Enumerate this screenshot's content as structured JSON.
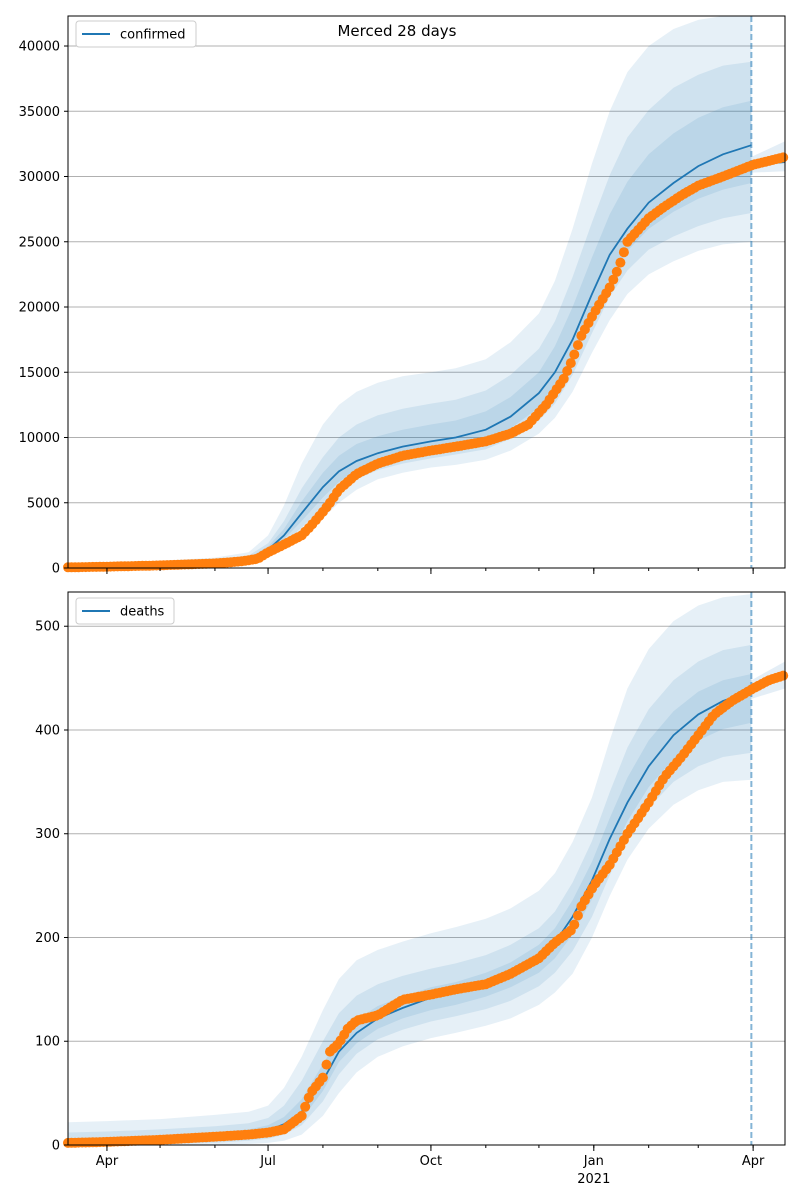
{
  "figure_title": "Merced 28 days",
  "colors": {
    "model_line": "#1f77b4",
    "observed": "#ff7f0e",
    "band": "#1f77b4",
    "grid": "#b0b0b0",
    "forecast_line": "#1f77b4"
  },
  "x_axis": {
    "start": "2020-03-10",
    "end": "2021-04-19",
    "ticks": [
      {
        "label": "Apr",
        "date": "2020-04-01"
      },
      {
        "label": "Jul",
        "date": "2020-07-01"
      },
      {
        "label": "Oct",
        "date": "2020-10-01"
      },
      {
        "label": "Jan",
        "date": "2021-01-01"
      },
      {
        "label": "Apr",
        "date": "2021-04-01"
      }
    ],
    "year_label": "2021",
    "year_label_date": "2021-01-01",
    "forecast_date": "2021-03-31"
  },
  "chart_data": [
    {
      "type": "line",
      "legend": "confirmed",
      "legend_placement": "upper-left",
      "grid_y": true,
      "ylim": [
        0,
        42300
      ],
      "yticks": [
        0,
        5000,
        10000,
        15000,
        20000,
        25000,
        30000,
        35000,
        40000
      ],
      "model": {
        "dates": [
          "2020-03-10",
          "2020-04-01",
          "2020-05-01",
          "2020-06-01",
          "2020-06-20",
          "2020-07-01",
          "2020-07-10",
          "2020-07-20",
          "2020-08-01",
          "2020-08-10",
          "2020-08-20",
          "2020-09-01",
          "2020-09-15",
          "2020-10-01",
          "2020-10-15",
          "2020-11-01",
          "2020-11-15",
          "2020-12-01",
          "2020-12-10",
          "2020-12-20",
          "2020-12-31",
          "2021-01-10",
          "2021-01-20",
          "2021-02-01",
          "2021-02-15",
          "2021-03-01",
          "2021-03-15",
          "2021-03-31"
        ],
        "values": [
          150,
          200,
          280,
          450,
          700,
          1400,
          2500,
          4200,
          6200,
          7400,
          8200,
          8800,
          9300,
          9700,
          10000,
          10600,
          11600,
          13400,
          15000,
          17500,
          21000,
          24000,
          26000,
          28000,
          29500,
          30800,
          31700,
          32400
        ]
      },
      "bands": [
        {
          "dates": [
            "2020-03-10",
            "2020-04-01",
            "2020-05-01",
            "2020-06-01",
            "2020-06-20",
            "2020-07-01",
            "2020-07-10",
            "2020-07-20",
            "2020-08-01",
            "2020-08-10",
            "2020-08-20",
            "2020-09-01",
            "2020-09-15",
            "2020-10-01",
            "2020-10-15",
            "2020-11-01",
            "2020-11-15",
            "2020-12-01",
            "2020-12-10",
            "2020-12-20",
            "2020-12-31",
            "2021-01-10",
            "2021-01-20",
            "2021-02-01",
            "2021-02-15",
            "2021-03-01",
            "2021-03-15",
            "2021-03-31"
          ],
          "lower": [
            100,
            150,
            200,
            330,
            500,
            900,
            1600,
            2600,
            3800,
            5000,
            6000,
            6800,
            7300,
            7700,
            7900,
            8300,
            9000,
            10300,
            11500,
            13500,
            16500,
            19000,
            21000,
            22500,
            23500,
            24300,
            24800,
            25000
          ],
          "upper": [
            300,
            400,
            550,
            800,
            1200,
            2500,
            4800,
            8000,
            11000,
            12500,
            13500,
            14200,
            14700,
            15000,
            15300,
            16000,
            17300,
            19500,
            22000,
            26000,
            31000,
            35000,
            38000,
            40000,
            41300,
            42000,
            42300,
            42300
          ]
        },
        {
          "dates": [
            "2020-03-10",
            "2020-04-01",
            "2020-05-01",
            "2020-06-01",
            "2020-06-20",
            "2020-07-01",
            "2020-07-10",
            "2020-07-20",
            "2020-08-01",
            "2020-08-10",
            "2020-08-20",
            "2020-09-01",
            "2020-09-15",
            "2020-10-01",
            "2020-10-15",
            "2020-11-01",
            "2020-11-15",
            "2020-12-01",
            "2020-12-10",
            "2020-12-20",
            "2020-12-31",
            "2021-01-10",
            "2021-01-20",
            "2021-02-01",
            "2021-02-15",
            "2021-03-01",
            "2021-03-15",
            "2021-03-31"
          ],
          "lower": [
            120,
            170,
            230,
            380,
            580,
            1050,
            1900,
            3100,
            4700,
            5800,
            6800,
            7500,
            8000,
            8400,
            8700,
            9100,
            9900,
            11300,
            12600,
            14800,
            18000,
            20800,
            22800,
            24400,
            25400,
            26200,
            26800,
            27200
          ],
          "upper": [
            220,
            300,
            400,
            620,
            950,
            1900,
            3600,
            6100,
            8500,
            10000,
            11000,
            11700,
            12200,
            12600,
            12900,
            13600,
            14800,
            16800,
            18900,
            22300,
            26500,
            30100,
            33000,
            35100,
            36800,
            37800,
            38500,
            38800
          ]
        },
        {
          "dates": [
            "2020-03-10",
            "2020-04-01",
            "2020-05-01",
            "2020-06-01",
            "2020-06-20",
            "2020-07-01",
            "2020-07-10",
            "2020-07-20",
            "2020-08-01",
            "2020-08-10",
            "2020-08-20",
            "2020-09-01",
            "2020-09-15",
            "2020-10-01",
            "2020-10-15",
            "2020-11-01",
            "2020-11-15",
            "2020-12-01",
            "2020-12-10",
            "2020-12-20",
            "2020-12-31",
            "2021-01-10",
            "2021-01-20",
            "2021-02-01",
            "2021-02-15",
            "2021-03-01",
            "2021-03-15",
            "2021-03-31"
          ],
          "lower": [
            135,
            185,
            255,
            410,
            630,
            1200,
            2200,
            3600,
            5400,
            6600,
            7500,
            8100,
            8600,
            9000,
            9300,
            9800,
            10700,
            12300,
            13700,
            16000,
            19400,
            22300,
            24300,
            26000,
            27300,
            28300,
            29000,
            29500
          ],
          "upper": [
            180,
            240,
            330,
            520,
            800,
            1650,
            3000,
            5100,
            7300,
            8600,
            9500,
            10100,
            10600,
            11000,
            11300,
            12000,
            13100,
            15000,
            17000,
            20000,
            23800,
            27100,
            29600,
            31700,
            33300,
            34500,
            35300,
            35800
          ]
        }
      ],
      "tail": {
        "dates": [
          "2021-03-31",
          "2021-04-19"
        ],
        "center": [
          30900,
          31100
        ],
        "lower": [
          30300,
          30400
        ],
        "upper": [
          31500,
          32700
        ]
      },
      "observed": {
        "dates": [
          "2020-03-10",
          "2020-04-01",
          "2020-05-01",
          "2020-06-01",
          "2020-06-15",
          "2020-06-25",
          "2020-07-01",
          "2020-07-10",
          "2020-07-20",
          "2020-07-25",
          "2020-08-01",
          "2020-08-05",
          "2020-08-10",
          "2020-08-20",
          "2020-09-01",
          "2020-09-15",
          "2020-10-01",
          "2020-10-15",
          "2020-11-01",
          "2020-11-15",
          "2020-11-25",
          "2020-12-05",
          "2020-12-15",
          "2020-12-20",
          "2020-12-25",
          "2021-01-01",
          "2021-01-10",
          "2021-01-15",
          "2021-01-20",
          "2021-02-01",
          "2021-02-10",
          "2021-02-20",
          "2021-03-01",
          "2021-03-15",
          "2021-04-01",
          "2021-04-10",
          "2021-04-19"
        ],
        "values": [
          50,
          100,
          200,
          350,
          500,
          700,
          1200,
          1800,
          2500,
          3200,
          4300,
          5000,
          6000,
          7200,
          8000,
          8600,
          9000,
          9300,
          9700,
          10300,
          11000,
          12500,
          14500,
          16000,
          17800,
          19500,
          21500,
          23000,
          25000,
          26800,
          27700,
          28600,
          29300,
          30000,
          30900,
          31200,
          31500
        ]
      }
    },
    {
      "type": "line",
      "legend": "deaths",
      "legend_placement": "upper-left",
      "grid_y": true,
      "ylim": [
        0,
        533
      ],
      "yticks": [
        0,
        100,
        200,
        300,
        400,
        500
      ],
      "model": {
        "dates": [
          "2020-03-10",
          "2020-04-01",
          "2020-05-01",
          "2020-06-01",
          "2020-06-20",
          "2020-07-01",
          "2020-07-10",
          "2020-07-20",
          "2020-08-01",
          "2020-08-10",
          "2020-08-20",
          "2020-09-01",
          "2020-09-15",
          "2020-10-01",
          "2020-10-15",
          "2020-11-01",
          "2020-11-15",
          "2020-12-01",
          "2020-12-10",
          "2020-12-20",
          "2020-12-31",
          "2021-01-10",
          "2021-01-20",
          "2021-02-01",
          "2021-02-15",
          "2021-03-01",
          "2021-03-15",
          "2021-03-31"
        ],
        "values": [
          2,
          3,
          5,
          8,
          11,
          14,
          20,
          32,
          62,
          90,
          108,
          122,
          132,
          142,
          147,
          155,
          165,
          180,
          195,
          220,
          255,
          295,
          330,
          365,
          395,
          415,
          428,
          437
        ]
      },
      "bands": [
        {
          "dates": [
            "2020-03-10",
            "2020-04-01",
            "2020-05-01",
            "2020-06-01",
            "2020-06-20",
            "2020-07-01",
            "2020-07-10",
            "2020-07-20",
            "2020-08-01",
            "2020-08-10",
            "2020-08-20",
            "2020-09-01",
            "2020-09-15",
            "2020-10-01",
            "2020-10-15",
            "2020-11-01",
            "2020-11-15",
            "2020-12-01",
            "2020-12-10",
            "2020-12-20",
            "2020-12-31",
            "2021-01-10",
            "2021-01-20",
            "2021-02-01",
            "2021-02-15",
            "2021-03-01",
            "2021-03-15",
            "2021-03-31"
          ],
          "lower": [
            0,
            0,
            0,
            0,
            1,
            2,
            4,
            10,
            28,
            50,
            70,
            85,
            95,
            103,
            108,
            115,
            122,
            135,
            147,
            165,
            200,
            240,
            275,
            305,
            328,
            342,
            350,
            352
          ],
          "upper": [
            22,
            23,
            25,
            29,
            32,
            38,
            55,
            85,
            130,
            160,
            178,
            188,
            196,
            204,
            210,
            218,
            228,
            245,
            262,
            292,
            335,
            390,
            440,
            478,
            505,
            520,
            528,
            531
          ]
        },
        {
          "dates": [
            "2020-03-10",
            "2020-04-01",
            "2020-05-01",
            "2020-06-01",
            "2020-06-20",
            "2020-07-01",
            "2020-07-10",
            "2020-07-20",
            "2020-08-01",
            "2020-08-10",
            "2020-08-20",
            "2020-09-01",
            "2020-09-15",
            "2020-10-01",
            "2020-10-15",
            "2020-11-01",
            "2020-11-15",
            "2020-12-01",
            "2020-12-10",
            "2020-12-20",
            "2020-12-31",
            "2021-01-10",
            "2021-01-20",
            "2021-02-01",
            "2021-02-15",
            "2021-03-01",
            "2021-03-15",
            "2021-03-31"
          ],
          "lower": [
            0,
            0,
            1,
            2,
            4,
            6,
            10,
            19,
            42,
            68,
            88,
            102,
            111,
            119,
            124,
            131,
            139,
            153,
            166,
            187,
            220,
            260,
            294,
            325,
            350,
            365,
            374,
            378
          ],
          "upper": [
            12,
            13,
            15,
            18,
            21,
            26,
            38,
            62,
            100,
            127,
            144,
            155,
            163,
            170,
            175,
            183,
            193,
            209,
            225,
            253,
            293,
            340,
            383,
            420,
            448,
            466,
            477,
            482
          ]
        },
        {
          "dates": [
            "2020-03-10",
            "2020-04-01",
            "2020-05-01",
            "2020-06-01",
            "2020-06-20",
            "2020-07-01",
            "2020-07-10",
            "2020-07-20",
            "2020-08-01",
            "2020-08-10",
            "2020-08-20",
            "2020-09-01",
            "2020-09-15",
            "2020-10-01",
            "2020-10-15",
            "2020-11-01",
            "2020-11-15",
            "2020-12-01",
            "2020-12-10",
            "2020-12-20",
            "2020-12-31",
            "2021-01-10",
            "2021-01-20",
            "2021-02-01",
            "2021-02-15",
            "2021-03-01",
            "2021-03-15",
            "2021-03-31"
          ],
          "lower": [
            0,
            1,
            2,
            4,
            7,
            10,
            15,
            25,
            52,
            80,
            98,
            112,
            122,
            130,
            135,
            143,
            152,
            166,
            180,
            203,
            237,
            277,
            312,
            345,
            372,
            390,
            401,
            407
          ],
          "upper": [
            6,
            7,
            9,
            12,
            15,
            19,
            27,
            44,
            78,
            104,
            121,
            134,
            143,
            152,
            157,
            166,
            176,
            193,
            209,
            236,
            273,
            315,
            354,
            390,
            418,
            437,
            448,
            454
          ]
        }
      ],
      "tail": {
        "dates": [
          "2021-03-31",
          "2021-04-19"
        ],
        "center": [
          440,
          452
        ],
        "lower": [
          430,
          440
        ],
        "upper": [
          448,
          466
        ]
      },
      "observed": {
        "dates": [
          "2020-03-10",
          "2020-04-01",
          "2020-05-01",
          "2020-06-01",
          "2020-06-20",
          "2020-07-01",
          "2020-07-10",
          "2020-07-20",
          "2020-07-25",
          "2020-08-01",
          "2020-08-05",
          "2020-08-10",
          "2020-08-15",
          "2020-08-20",
          "2020-09-01",
          "2020-09-15",
          "2020-10-01",
          "2020-10-15",
          "2020-11-01",
          "2020-11-15",
          "2020-12-01",
          "2020-12-10",
          "2020-12-20",
          "2020-12-25",
          "2021-01-01",
          "2021-01-10",
          "2021-01-20",
          "2021-02-01",
          "2021-02-10",
          "2021-02-20",
          "2021-03-01",
          "2021-03-10",
          "2021-03-20",
          "2021-04-01",
          "2021-04-10",
          "2021-04-19"
        ],
        "values": [
          2,
          3,
          5,
          8,
          10,
          12,
          15,
          28,
          50,
          65,
          90,
          98,
          112,
          120,
          125,
          140,
          145,
          150,
          155,
          165,
          180,
          195,
          208,
          230,
          250,
          270,
          300,
          330,
          355,
          375,
          395,
          415,
          428,
          440,
          448,
          453
        ]
      }
    }
  ]
}
